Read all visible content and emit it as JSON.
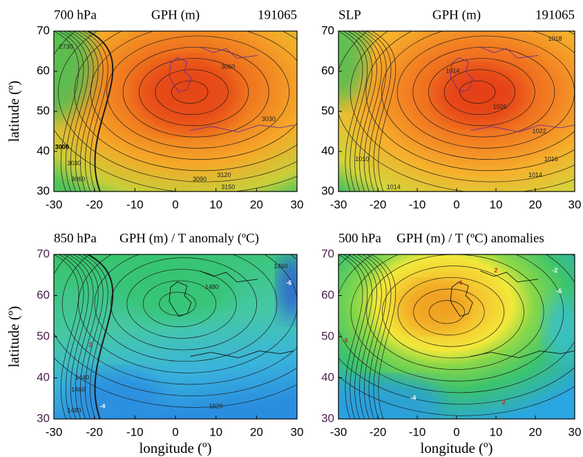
{
  "chart_data": [
    {
      "type": "map",
      "title_left": "700 hPa",
      "title": "GPH (m)",
      "title_right": "191065",
      "ylabel": "latitude (º)",
      "xlim": [
        -30,
        30
      ],
      "ylim": [
        30,
        70
      ],
      "xticks": [
        -30,
        -20,
        -10,
        0,
        10,
        20,
        30
      ],
      "yticks": [
        30,
        40,
        50,
        60,
        70
      ],
      "tick_color": "#000000",
      "contour_labels": [
        {
          "value": 2730,
          "lon": -27,
          "lat": 66,
          "color": "#222222"
        },
        {
          "value": 3000,
          "lon": -28,
          "lat": 41,
          "color": "#000000"
        },
        {
          "value": 3030,
          "lon": -25,
          "lat": 37,
          "color": "#222222"
        },
        {
          "value": 3060,
          "lon": -24,
          "lat": 33,
          "color": "#222222"
        },
        {
          "value": 3090,
          "lon": 6,
          "lat": 33,
          "color": "#222222"
        },
        {
          "value": 3120,
          "lon": 12,
          "lat": 34,
          "color": "#222222"
        },
        {
          "value": 3150,
          "lon": 13,
          "lat": 31,
          "color": "#222222"
        },
        {
          "value": 3060,
          "lon": 13,
          "lat": 61,
          "color": "#222222"
        },
        {
          "value": 3030,
          "lon": 23,
          "lat": 48,
          "color": "#222222"
        }
      ]
    },
    {
      "type": "map",
      "title_left": "SLP",
      "title": "GPH (m)",
      "title_right": "191065",
      "xlim": [
        -30,
        30
      ],
      "ylim": [
        30,
        70
      ],
      "xticks": [
        -30,
        -20,
        -10,
        0,
        10,
        20,
        30
      ],
      "yticks": [
        30,
        40,
        50,
        60,
        70
      ],
      "tick_color": "#000000",
      "contour_labels": [
        {
          "value": 1018,
          "lon": 25,
          "lat": 68,
          "color": "#222222"
        },
        {
          "value": 1014,
          "lon": -1,
          "lat": 60,
          "color": "#222222"
        },
        {
          "value": 1026,
          "lon": 11,
          "lat": 51,
          "color": "#222222"
        },
        {
          "value": 1022,
          "lon": 21,
          "lat": 45,
          "color": "#222222"
        },
        {
          "value": 1016,
          "lon": 24,
          "lat": 38,
          "color": "#222222"
        },
        {
          "value": 1014,
          "lon": 20,
          "lat": 34,
          "color": "#222222"
        },
        {
          "value": 1010,
          "lon": -24,
          "lat": 38,
          "color": "#222222"
        },
        {
          "value": 1014,
          "lon": -16,
          "lat": 31,
          "color": "#222222"
        }
      ]
    },
    {
      "type": "map",
      "title_left": "850 hPa",
      "title": "GPH (m) / T anomaly (ºC)",
      "ylabel": "latitude (º)",
      "xlabel": "longitude (º)",
      "xlim": [
        -30,
        30
      ],
      "ylim": [
        30,
        70
      ],
      "xticks": [
        -30,
        -20,
        -10,
        0,
        10,
        20,
        30
      ],
      "yticks": [
        30,
        40,
        50,
        60,
        70
      ],
      "tick_color": "#4b1f4b",
      "contour_labels": [
        {
          "value": 1460,
          "lon": 26,
          "lat": 67,
          "color": "#222222"
        },
        {
          "value": 1480,
          "lon": 9,
          "lat": 62,
          "color": "#222222"
        },
        {
          "value": 1440,
          "lon": -23,
          "lat": 40,
          "color": "#222222"
        },
        {
          "value": 1460,
          "lon": -24,
          "lat": 37,
          "color": "#222222"
        },
        {
          "value": 1480,
          "lon": -25,
          "lat": 32,
          "color": "#222222"
        },
        {
          "value": 1520,
          "lon": 10,
          "lat": 33,
          "color": "#222222"
        },
        {
          "value": 2,
          "lon": -21,
          "lat": 48,
          "color": "#d42020"
        },
        {
          "value": -4,
          "lon": -18,
          "lat": 33,
          "color": "#ffffff"
        },
        {
          "value": -6,
          "lon": 28,
          "lat": 63,
          "color": "#ffffff"
        }
      ]
    },
    {
      "type": "map",
      "title_left": "500 hPa",
      "title": "GPH (m) / T (ºC) anomalies",
      "xlabel": "longitude (º)",
      "xlim": [
        -30,
        30
      ],
      "ylim": [
        30,
        70
      ],
      "xticks": [
        -30,
        -20,
        -10,
        0,
        10,
        20,
        30
      ],
      "yticks": [
        30,
        40,
        50,
        60,
        70
      ],
      "tick_color": "#4b1f4b",
      "contour_labels": [
        {
          "value": 2,
          "lon": 10,
          "lat": 66,
          "color": "#d42020"
        },
        {
          "value": 4,
          "lon": 1,
          "lat": 63,
          "color": "#d42020"
        },
        {
          "value": 6,
          "lon": -28,
          "lat": 49,
          "color": "#d42020"
        },
        {
          "value": 2,
          "lon": 12,
          "lat": 34,
          "color": "#d42020"
        },
        {
          "value": -2,
          "lon": 25,
          "lat": 66,
          "color": "#ffffff"
        },
        {
          "value": -6,
          "lon": 26,
          "lat": 61,
          "color": "#ffffff"
        },
        {
          "value": -4,
          "lon": -11,
          "lat": 35,
          "color": "#ffffff"
        }
      ]
    }
  ]
}
